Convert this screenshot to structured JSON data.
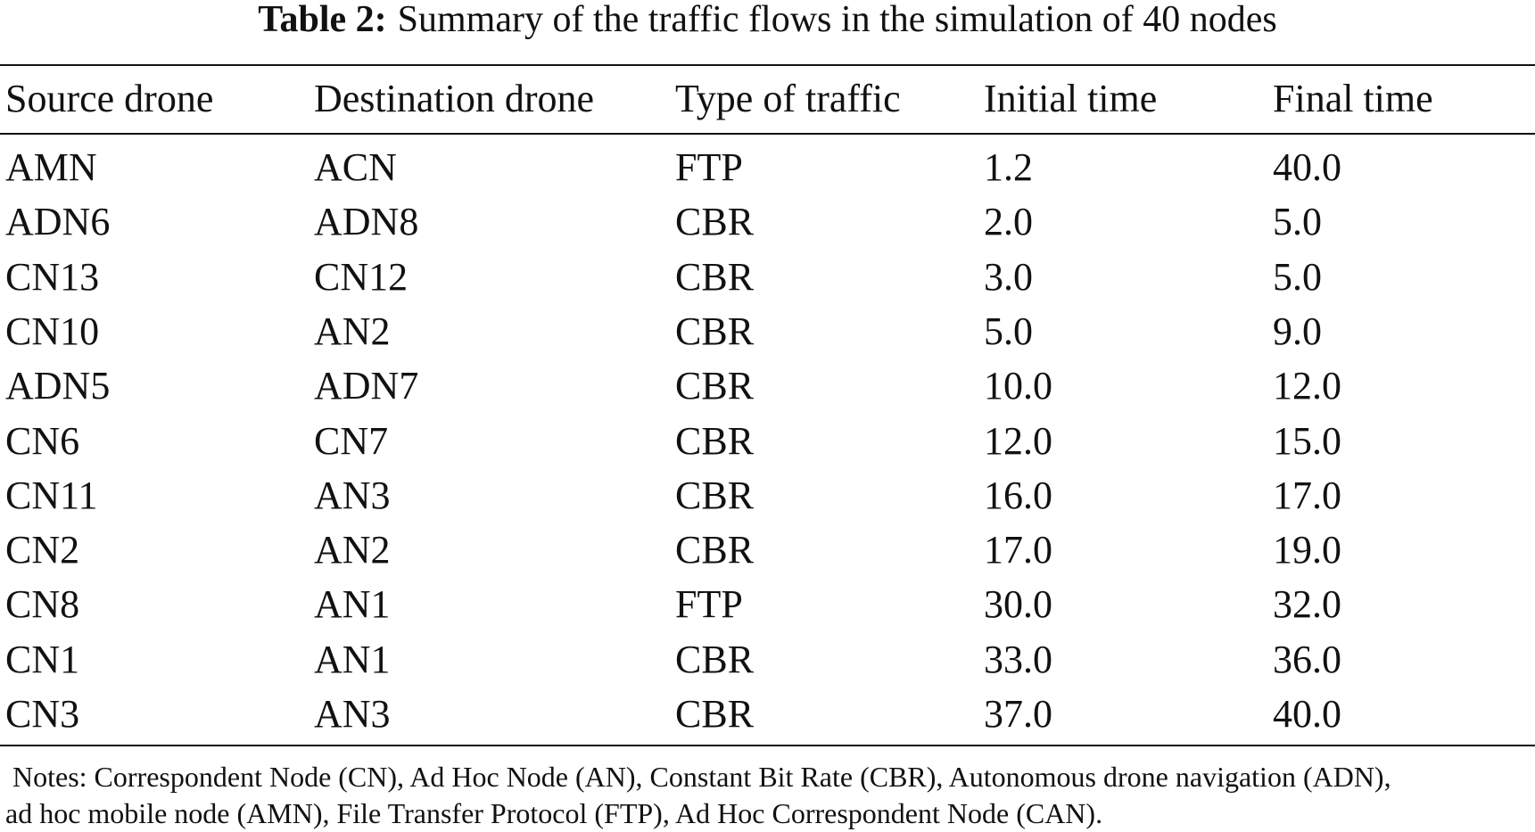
{
  "title": {
    "label": "Table 2:",
    "text": "Summary of the traffic flows in the simulation of 40 nodes"
  },
  "table": {
    "header": [
      "Source drone",
      "Destination drone",
      "Type of traffic",
      "Initial time",
      "Final time"
    ],
    "rows": [
      [
        "AMN",
        "ACN",
        "FTP",
        "1.2",
        "40.0"
      ],
      [
        "ADN6",
        "ADN8",
        "CBR",
        "2.0",
        "5.0"
      ],
      [
        "CN13",
        "CN12",
        "CBR",
        "3.0",
        "5.0"
      ],
      [
        "CN10",
        "AN2",
        "CBR",
        "5.0",
        "9.0"
      ],
      [
        "ADN5",
        "ADN7",
        "CBR",
        "10.0",
        "12.0"
      ],
      [
        "CN6",
        "CN7",
        "CBR",
        "12.0",
        "15.0"
      ],
      [
        "CN11",
        "AN3",
        "CBR",
        "16.0",
        "17.0"
      ],
      [
        "CN2",
        "AN2",
        "CBR",
        "17.0",
        "19.0"
      ],
      [
        "CN8",
        "AN1",
        "FTP",
        "30.0",
        "32.0"
      ],
      [
        "CN1",
        "AN1",
        "CBR",
        "33.0",
        "36.0"
      ],
      [
        "CN3",
        "AN3",
        "CBR",
        "37.0",
        "40.0"
      ]
    ]
  },
  "notes": [
    "Notes: Correspondent Node (CN), Ad Hoc Node (AN), Constant Bit Rate (CBR), Autonomous drone navigation (ADN),",
    "ad hoc mobile node (AMN), File Transfer Protocol (FTP), Ad Hoc Correspondent Node (CAN)."
  ]
}
